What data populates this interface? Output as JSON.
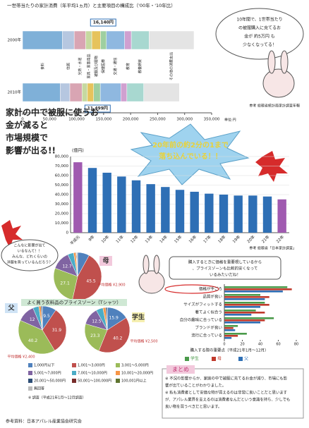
{
  "chart_data": [
    {
      "type": "stacked-hbar",
      "title": "一世帯当たりの家計消費（年平均1ヵ月）と主要項目の構成比（'00年・'10年比）",
      "categories": [
        "2000年",
        "2010年"
      ],
      "series": [
        {
          "name": "食料",
          "color": "#7fb0d8",
          "values": [
            73844,
            69597
          ]
        },
        {
          "name": "住居",
          "color": "#b6c7e0",
          "values": [
            21716,
            17930
          ]
        },
        {
          "name": "光熱・水道",
          "color": "#d9a5b3",
          "values": [
            21282,
            22488
          ]
        },
        {
          "name": "家具・家事用品",
          "color": "#c6d9a0",
          "values": [
            11268,
            10010
          ]
        },
        {
          "name": "被服及び履物",
          "color": "#e6c35c",
          "values": [
            16140,
            11499
          ],
          "value_labels": [
            "16,140円",
            "11,499円"
          ]
        },
        {
          "name": "保健医療",
          "color": "#9ecfa0",
          "values": [
            10901,
            12359
          ]
        },
        {
          "name": "交通・通信",
          "color": "#8fb8e0",
          "values": [
            33782,
            37999
          ]
        },
        {
          "name": "教育",
          "color": "#d0a0d0",
          "values": [
            12361,
            11226
          ]
        },
        {
          "name": "教養娯楽",
          "color": "#a8d8d0",
          "values": [
            32847,
            31121
          ]
        },
        {
          "name": "その他の消費支出",
          "color": "#e4e4e4",
          "values": [
            83139,
            66015
          ]
        }
      ],
      "xlim": [
        0,
        350000
      ],
      "xticks": [
        0,
        {
          "value": 50000,
          "label": "50,000"
        },
        {
          "value": 100000,
          "label": "100,000"
        },
        {
          "value": 150000,
          "label": "150,000"
        },
        {
          "value": 200000,
          "label": "200,000"
        },
        {
          "value": 250000,
          "label": "250,000"
        },
        {
          "value": 300000,
          "label": "300,000"
        },
        {
          "value": 350000,
          "label": "350,000"
        }
      ],
      "unit": "単位:円",
      "source": "参考 総務省統計局家計調査年報",
      "annotation": [
        "10年間で、1世帯当たり",
        "の被服購入に充てるお",
        "金が 約5万円 も",
        "少なくなってる！"
      ]
    },
    {
      "type": "bar",
      "categories": [
        "平成元",
        "9年",
        "10年",
        "11年",
        "12年",
        "13年",
        "14年",
        "15年",
        "16年",
        "17年",
        "18年",
        "19年",
        "20年",
        "21年",
        "22年"
      ],
      "values": [
        74000,
        68000,
        63000,
        59000,
        55000,
        51000,
        48000,
        45000,
        43000,
        41000,
        40000,
        39000,
        39000,
        38000,
        35000
      ],
      "colors": [
        "#a05ab0",
        "#2e6fb5",
        "#2e6fb5",
        "#2e6fb5",
        "#2e6fb5",
        "#2e6fb5",
        "#2e6fb5",
        "#2e6fb5",
        "#2e6fb5",
        "#2e6fb5",
        "#2e6fb5",
        "#2e6fb5",
        "#2e6fb5",
        "#2e6fb5",
        "#a05ab0"
      ],
      "ylabel": "(億円)",
      "ylim": [
        0,
        80000
      ],
      "yticks": [
        0,
        {
          "value": 10000,
          "label": "10,000"
        },
        {
          "value": 20000,
          "label": "20,000"
        },
        {
          "value": 30000,
          "label": "30,000"
        },
        {
          "value": 40000,
          "label": "40,000"
        },
        {
          "value": 50000,
          "label": "50,000"
        },
        {
          "value": 60000,
          "label": "60,000"
        },
        {
          "value": 70000,
          "label": "70,000"
        },
        {
          "value": 80000,
          "label": "80,000"
        }
      ],
      "grid": true,
      "source": "参考 総務省「日本家計調査」",
      "headline": [
        "家計の中で被服に使うお",
        "金が減ると",
        "市場規模で",
        "影響が出る!!"
      ],
      "annotation": [
        "20年前の約2分の1まで",
        "落ち込んでいる！！"
      ],
      "bubble": [
        "こんなに影響が出て",
        "いるなんて！！",
        "みんな、どれくらいの",
        "洋服を買っているんだろう？"
      ]
    },
    {
      "type": "pie",
      "title": "母",
      "subtitle": "平均価格 ¥2,900",
      "categories": [
        "1,000円以下",
        "1,001～3,000円",
        "3,001～5,000円",
        "5,001～7,000円",
        "7,001～10,000円",
        "10,001～20,000円",
        "20,001～50,000円",
        "50,001～100,000円",
        "100,001円以上",
        "無回答"
      ],
      "values": [
        8.0,
        45.5,
        27.1,
        12.7,
        4.0,
        1.5,
        0.5,
        0,
        0,
        0.7
      ],
      "colors": [
        "#4f81bd",
        "#c0504d",
        "#9bbb59",
        "#8064a2",
        "#4bacc6",
        "#f79646",
        "#2c4d75",
        "#772c2a",
        "#5f7530",
        "#bbbbbb"
      ]
    },
    {
      "type": "pie",
      "title": "父",
      "subtitle": "平均価格 ¥2,400",
      "values": [
        9.5,
        31.9,
        40.2,
        12.0,
        4.0,
        1.5,
        0.9,
        0,
        0,
        0
      ],
      "colors": [
        "#4f81bd",
        "#c0504d",
        "#9bbb59",
        "#8064a2",
        "#4bacc6",
        "#f79646",
        "#2c4d75",
        "#772c2a",
        "#5f7530",
        "#bbbbbb"
      ]
    },
    {
      "type": "pie",
      "title": "学生",
      "subtitle": "平均価格 ¥2,500",
      "values": [
        15.9,
        40.2,
        23.3,
        12.5,
        5.0,
        2.0,
        1.1,
        0,
        0,
        0
      ],
      "colors": [
        "#4f81bd",
        "#c0504d",
        "#9bbb59",
        "#8064a2",
        "#4bacc6",
        "#f79646",
        "#2c4d75",
        "#772c2a",
        "#5f7530",
        "#bbbbbb"
      ],
      "group_title": "よく買う衣料品のプライスゾーン（Tシャツ）",
      "note": "※ 調査（平成21年1月～12月調査）"
    },
    {
      "type": "grouped-hbar",
      "title": "購入する際の重要点（平成21年1月～12月）",
      "categories": [
        "価格が手ごろ",
        "品質が良い",
        "サイズがフィットする",
        "着てよく似合う",
        "自分の趣味に合っている",
        "ブランドが良い",
        "流行に合っている"
      ],
      "series": [
        {
          "name": "学生",
          "color": "#4a9a4a",
          "values": [
            70,
            40,
            45,
            35,
            55,
            15,
            25
          ]
        },
        {
          "name": "母",
          "color": "#c0392b",
          "values": [
            75,
            50,
            50,
            45,
            45,
            10,
            15
          ]
        },
        {
          "name": "父",
          "color": "#2e6fb5",
          "values": [
            65,
            45,
            40,
            30,
            40,
            12,
            8
          ]
        }
      ],
      "xlim": [
        0,
        80
      ],
      "xticks": [
        0,
        20,
        40,
        60,
        80
      ],
      "bubble": [
        "購入するときに価格を重要視しているから",
        "、プライスゾーンも比較的安くなって",
        "いるみたいだね！"
      ]
    }
  ],
  "summary": {
    "heading": "まとめ",
    "lines": [
      "※ 不況の影響からか、家庭の中で被服に充てるお金が減り、市場にも影",
      "響が出ていることがわかりました。",
      "※ 私も消費者として安価な物が買えるのは非常に良いことだと思います",
      "が、アパレル業界を支えるのは消費者なんだという意識を持ち、少しでも",
      "良い物を買うべきだと思います。"
    ]
  },
  "footer": "参考資料：日本アパレル産業協会研究会"
}
